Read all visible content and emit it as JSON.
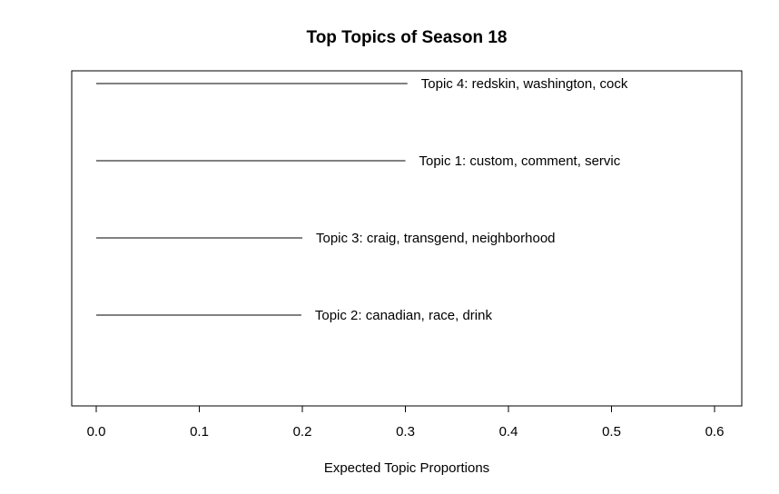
{
  "chart_data": {
    "type": "bar",
    "orientation": "horizontal",
    "title": "Top Topics of Season 18",
    "xlabel": "Expected Topic Proportions",
    "ylabel": "",
    "xlim": [
      0.0,
      0.6
    ],
    "xticks": [
      "0.0",
      "0.1",
      "0.2",
      "0.3",
      "0.4",
      "0.5",
      "0.6"
    ],
    "grid": false,
    "categories": [
      "Topic 4: redskin, washington, cock",
      "Topic 1: custom, comment, servic",
      "Topic 3: craig, transgend, neighborhood",
      "Topic 2: canadian, race, drink"
    ],
    "values": [
      0.302,
      0.3,
      0.2,
      0.199
    ]
  }
}
